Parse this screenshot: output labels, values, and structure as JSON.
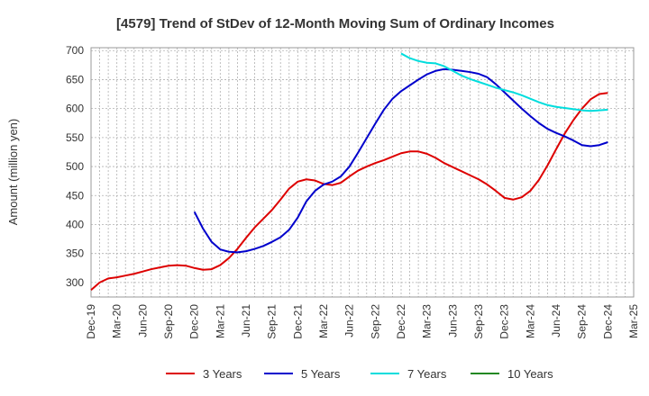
{
  "chart_data": {
    "type": "line",
    "title": "[4579]  Trend of StDev of 12-Month Moving Sum of Ordinary Incomes",
    "ylabel": "Amount (million yen)",
    "xlabel": "",
    "ylim": [
      275,
      705
    ],
    "yticks": [
      300,
      350,
      400,
      450,
      500,
      550,
      600,
      650,
      700
    ],
    "grid": true,
    "legend_position": "bottom",
    "x_start": "Dec-19",
    "x_ticks": [
      "Dec-19",
      "Mar-20",
      "Jun-20",
      "Sep-20",
      "Dec-20",
      "Mar-21",
      "Jun-21",
      "Sep-21",
      "Dec-21",
      "Mar-22",
      "Jun-22",
      "Sep-22",
      "Dec-22",
      "Mar-23",
      "Jun-23",
      "Sep-23",
      "Dec-23",
      "Mar-24",
      "Jun-24",
      "Sep-24",
      "Dec-24",
      "Mar-25"
    ],
    "series": [
      {
        "name": "3 Years",
        "color": "#dd0000",
        "start_index": 0,
        "values": [
          287,
          300,
          307,
          309,
          312,
          315,
          319,
          323,
          326,
          329,
          330,
          329,
          325,
          322,
          323,
          330,
          342,
          358,
          377,
          395,
          410,
          425,
          443,
          462,
          474,
          478,
          476,
          470,
          468,
          472,
          483,
          493,
          500,
          506,
          511,
          517,
          523,
          526,
          526,
          522,
          515,
          506,
          499,
          492,
          485,
          478,
          469,
          458,
          446,
          443,
          447,
          458,
          477,
          502,
          530,
          557,
          580,
          600,
          616,
          625,
          627
        ]
      },
      {
        "name": "5 Years",
        "color": "#0000cc",
        "start_index": 12,
        "values": [
          422,
          393,
          370,
          357,
          353,
          352,
          354,
          358,
          363,
          370,
          378,
          391,
          412,
          440,
          458,
          469,
          474,
          483,
          500,
          524,
          549,
          574,
          598,
          617,
          630,
          640,
          650,
          659,
          665,
          668,
          667,
          665,
          663,
          660,
          654,
          642,
          628,
          614,
          600,
          587,
          575,
          565,
          558,
          552,
          545,
          537,
          535,
          537,
          542
        ]
      },
      {
        "name": "7 Years",
        "color": "#00dddd",
        "start_index": 36,
        "values": [
          695,
          687,
          682,
          679,
          678,
          673,
          665,
          657,
          651,
          646,
          641,
          636,
          632,
          628,
          623,
          617,
          611,
          606,
          603,
          601,
          599,
          597,
          596,
          597,
          598
        ]
      },
      {
        "name": "10 Years",
        "color": "#228822",
        "start_index": 0,
        "values": []
      }
    ]
  }
}
